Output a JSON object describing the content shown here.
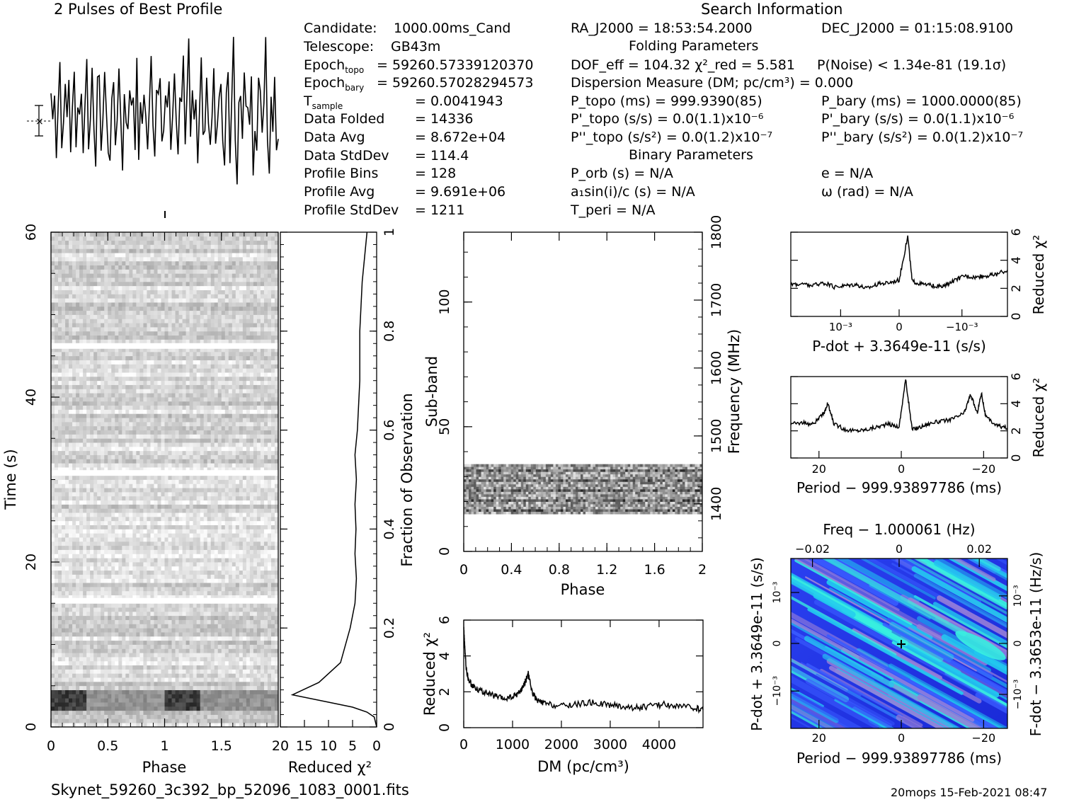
{
  "header": {
    "profile_title": "2 Pulses of Best Profile",
    "search_title": "Search Information",
    "folding_title": "Folding Parameters",
    "binary_title": "Binary Parameters"
  },
  "info_left": [
    {
      "label": "Candidate:",
      "value": "1000.00ms_Cand"
    },
    {
      "label": "Telescope:",
      "value": "GB43m"
    },
    {
      "label": "Epoch_topo",
      "value": "= 59260.57339120370"
    },
    {
      "label": "Epoch_bary",
      "value": "= 59260.57028294573"
    },
    {
      "label": "T_sample",
      "value": "= 0.0041943"
    },
    {
      "label": "Data Folded",
      "value": "= 14336"
    },
    {
      "label": "Data Avg",
      "value": "= 8.672e+04"
    },
    {
      "label": "Data StdDev",
      "value": "= 114.4"
    },
    {
      "label": "Profile Bins",
      "value": "= 128"
    },
    {
      "label": "Profile Avg",
      "value": "= 9.691e+06"
    },
    {
      "label": "Profile StdDev",
      "value": "= 1211"
    }
  ],
  "search_info": {
    "ra": "RA_J2000 = 18:53:54.2000",
    "dec": "DEC_J2000 = 01:15:08.9100"
  },
  "folding": {
    "dof": "DOF_eff = 104.32  χ²_red = 5.581",
    "pnoise": "P(Noise) < 1.34e-81  (19.1σ)",
    "dm": "Dispersion Measure (DM; pc/cm³) = 0.000",
    "p_topo": "P_topo (ms) =  999.9390(85)",
    "p_bary": "P_bary (ms) =  1000.0000(85)",
    "pd_topo": "P'_topo (s/s) = 0.0(1.1)x10⁻⁶",
    "pd_bary": "P'_bary (s/s) = 0.0(1.1)x10⁻⁶",
    "pdd_topo": "P''_topo (s/s²) = 0.0(1.2)x10⁻⁷",
    "pdd_bary": "P''_bary (s/s²) = 0.0(1.2)x10⁻⁷"
  },
  "binary": {
    "porb": "P_orb (s) = N/A",
    "e": "e = N/A",
    "asini": "a₁sin(i)/c (s) = N/A",
    "omega": "ω (rad) = N/A",
    "tperi": "T_peri = N/A"
  },
  "footer": {
    "filename": "Skynet_59260_3c392_bp_52096_1083_0001.fits",
    "stamp": "20mops 15-Feb-2021 08:47"
  },
  "chart_data": [
    {
      "type": "line",
      "name": "profile",
      "title": "2 Pulses of Best Profile",
      "x_range": [
        0,
        2
      ],
      "y": [
        0.62,
        0.45,
        0.7,
        0.3,
        0.55,
        0.8,
        0.4,
        0.35,
        0.65,
        0.5,
        0.75,
        0.2,
        0.5,
        0.85,
        0.3,
        0.6,
        0.45,
        0.7,
        0.25,
        0.55,
        0.9,
        0.4,
        0.35,
        0.65,
        0.5,
        0.2,
        0.6,
        0.8,
        0.3,
        0.45,
        0.7,
        0.55,
        0.35,
        0.1,
        0.6,
        0.75,
        0.3,
        0.5,
        0.85,
        0.4,
        0.2,
        0.65,
        0.55,
        0.3,
        0.7,
        0.45,
        0.6,
        0.35,
        0.8,
        0.25,
        0.5,
        0.4,
        0.7,
        0.55,
        0.3,
        0.65,
        0.95,
        0.45,
        0.2,
        0.6,
        0.5,
        0.75,
        0.35,
        0.4,
        0.62,
        0.45,
        0.7,
        0.3,
        0.55,
        0.8,
        0.4,
        0.35,
        0.65,
        0.5,
        0.75,
        0.2,
        0.5,
        0.85,
        0.3,
        0.6,
        0.45,
        0.7,
        0.25,
        0.55,
        0.9,
        0.4,
        0.35,
        0.65,
        0.5,
        0.2,
        0.6,
        0.8,
        0.3,
        0.45,
        0.7,
        0.55,
        0.35,
        0.1,
        0.6,
        0.75,
        0.3,
        0.5,
        0.85,
        0.4,
        0.2,
        0.65,
        0.55,
        0.3,
        0.7,
        0.45,
        0.6,
        0.35,
        0.8,
        0.25,
        0.5,
        0.4,
        0.7,
        0.55,
        0.3,
        0.65,
        0.95,
        0.45,
        0.2,
        0.6,
        0.5,
        0.75,
        0.35,
        0.4
      ]
    },
    {
      "type": "heatmap",
      "name": "time-phase",
      "xlabel": "Phase",
      "ylabel": "Time (s)",
      "x_range": [
        0,
        2
      ],
      "y_range": [
        0,
        60
      ],
      "xticks": [
        "0",
        "0.5",
        "1",
        "1.5"
      ],
      "yticks": [
        "0",
        "20",
        "40",
        "60"
      ],
      "gaps_s": [
        15.3,
        30.8,
        46.2
      ],
      "bright_rows_s": [
        2.5,
        3.8
      ]
    },
    {
      "type": "line",
      "name": "reduced-chi2-vs-fraction",
      "xlabel": "Reduced χ²",
      "ylabel": "Fraction of Observation",
      "x_range": [
        20,
        0
      ],
      "y_range": [
        0,
        1
      ],
      "xticks": [
        "20",
        "15",
        "10",
        "5",
        "0"
      ],
      "yticks": [
        "0",
        "0.2",
        "0.4",
        "0.6",
        "0.8",
        "1"
      ],
      "points": [
        [
          0,
          0
        ],
        [
          0.5,
          0.02
        ],
        [
          2,
          0.03
        ],
        [
          5,
          0.04
        ],
        [
          10,
          0.05
        ],
        [
          17.5,
          0.065
        ],
        [
          12,
          0.09
        ],
        [
          7.5,
          0.13
        ],
        [
          5.5,
          0.2
        ],
        [
          4.5,
          0.25
        ],
        [
          4.2,
          0.3
        ],
        [
          4.5,
          0.35
        ],
        [
          4.3,
          0.4
        ],
        [
          4.5,
          0.45
        ],
        [
          4.2,
          0.5
        ],
        [
          4.5,
          0.55
        ],
        [
          4.0,
          0.6
        ],
        [
          3.5,
          0.7
        ],
        [
          3.5,
          0.8
        ],
        [
          3,
          0.9
        ],
        [
          2.5,
          0.95
        ],
        [
          2,
          1.0
        ]
      ]
    },
    {
      "type": "heatmap",
      "name": "subband-phase",
      "xlabel": "Phase",
      "ylabel": "Sub-band",
      "y2label": "Frequency (MHz)",
      "x_range": [
        0,
        2
      ],
      "y_range": [
        0,
        128
      ],
      "y2_range": [
        1330,
        1800
      ],
      "xticks": [
        "0",
        "0.4",
        "0.8",
        "1.2",
        "1.6",
        "2"
      ],
      "yticks": [
        "0",
        "50",
        "100"
      ],
      "y2ticks": [
        "1400",
        "1500",
        "1600",
        "1700",
        "1800"
      ],
      "active_subbands": [
        15,
        35
      ]
    },
    {
      "type": "line",
      "name": "dm-curve",
      "xlabel": "DM (pc/cm³)",
      "ylabel": "Reduced χ²",
      "x_range": [
        0,
        4900
      ],
      "y_range": [
        0,
        6
      ],
      "xticks": [
        "0",
        "1000",
        "2000",
        "3000",
        "4000"
      ],
      "yticks": [
        "0",
        "2",
        "4",
        "6"
      ],
      "points": [
        [
          0,
          5.6
        ],
        [
          20,
          4.5
        ],
        [
          50,
          3.3
        ],
        [
          100,
          2.6
        ],
        [
          200,
          2.3
        ],
        [
          400,
          2.0
        ],
        [
          600,
          1.8
        ],
        [
          800,
          1.6
        ],
        [
          1000,
          1.7
        ],
        [
          1150,
          2.0
        ],
        [
          1250,
          2.5
        ],
        [
          1320,
          3.0
        ],
        [
          1400,
          2.0
        ],
        [
          1500,
          1.5
        ],
        [
          1700,
          1.3
        ],
        [
          2000,
          1.2
        ],
        [
          2300,
          1.3
        ],
        [
          2600,
          1.4
        ],
        [
          2900,
          1.3
        ],
        [
          3200,
          1.2
        ],
        [
          3500,
          1.1
        ],
        [
          3800,
          1.2
        ],
        [
          4100,
          1.3
        ],
        [
          4400,
          1.2
        ],
        [
          4700,
          1.1
        ],
        [
          4900,
          1.0
        ]
      ]
    },
    {
      "type": "line",
      "name": "pdot-curve",
      "xlabel": "P-dot + 3.3649e-11 (s/s)",
      "ylabel": "Reduced χ²",
      "y_range": [
        0,
        6
      ],
      "xticks": [
        "10⁻³",
        "0",
        "−10⁻³"
      ],
      "yticks": [
        "0",
        "2",
        "4",
        "6"
      ],
      "points": [
        [
          0,
          2.3
        ],
        [
          0.05,
          2.3
        ],
        [
          0.1,
          2.2
        ],
        [
          0.15,
          2.4
        ],
        [
          0.2,
          2.1
        ],
        [
          0.25,
          2.2
        ],
        [
          0.3,
          2.3
        ],
        [
          0.35,
          2.0
        ],
        [
          0.4,
          2.3
        ],
        [
          0.45,
          2.4
        ],
        [
          0.5,
          2.6
        ],
        [
          0.54,
          5.7
        ],
        [
          0.56,
          2.5
        ],
        [
          0.6,
          2.3
        ],
        [
          0.65,
          2.2
        ],
        [
          0.7,
          2.1
        ],
        [
          0.75,
          2.5
        ],
        [
          0.8,
          2.9
        ],
        [
          0.85,
          2.8
        ],
        [
          0.9,
          2.9
        ],
        [
          0.95,
          3.0
        ],
        [
          1.0,
          3.3
        ]
      ]
    },
    {
      "type": "line",
      "name": "period-curve",
      "xlabel": "Period − 999.93897786 (ms)",
      "ylabel": "Reduced χ²",
      "y_range": [
        0,
        6
      ],
      "xticks": [
        "20",
        "0",
        "−20"
      ],
      "yticks": [
        "0",
        "2",
        "4",
        "6"
      ],
      "points": [
        [
          0,
          2.5
        ],
        [
          0.05,
          2.6
        ],
        [
          0.1,
          2.5
        ],
        [
          0.15,
          3.2
        ],
        [
          0.17,
          4.0
        ],
        [
          0.2,
          2.5
        ],
        [
          0.25,
          2.1
        ],
        [
          0.3,
          2.0
        ],
        [
          0.35,
          2.1
        ],
        [
          0.4,
          2.3
        ],
        [
          0.45,
          2.5
        ],
        [
          0.5,
          2.3
        ],
        [
          0.53,
          5.8
        ],
        [
          0.56,
          2.1
        ],
        [
          0.6,
          2.3
        ],
        [
          0.65,
          2.6
        ],
        [
          0.7,
          2.7
        ],
        [
          0.75,
          2.9
        ],
        [
          0.8,
          3.3
        ],
        [
          0.83,
          4.7
        ],
        [
          0.86,
          3.3
        ],
        [
          0.88,
          4.8
        ],
        [
          0.9,
          3.0
        ],
        [
          0.95,
          2.4
        ],
        [
          1.0,
          2.2
        ]
      ]
    },
    {
      "type": "heatmap",
      "name": "period-pdot",
      "title": "Freq − 1.000061 (Hz)",
      "xlabel": "Period − 999.93897786 (ms)",
      "ylabel": "P-dot + 3.3649e-11 (s/s)",
      "y2label": "F-dot − 3.3653e-11 (Hz/s)",
      "xticks": [
        "20",
        "0",
        "−20"
      ],
      "x2ticks": [
        "−0.02",
        "0",
        "0.02"
      ],
      "yticks": [
        "10⁻³",
        "0",
        "−10⁻³"
      ],
      "y2ticks": [
        "10⁻³",
        "0",
        "−10⁻³"
      ],
      "colors": [
        "#1a2ad8",
        "#3a5bff",
        "#22c8f0",
        "#38f0e0",
        "#9a80d8"
      ]
    }
  ]
}
